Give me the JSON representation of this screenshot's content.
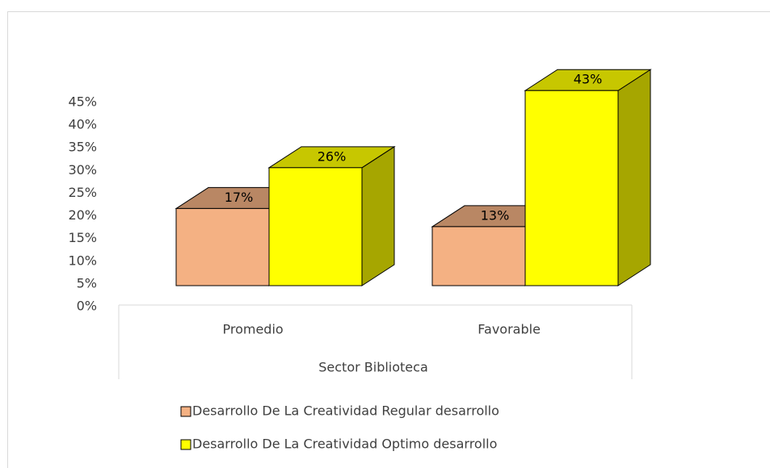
{
  "chart_data": {
    "type": "bar3d",
    "categories": [
      "Promedio",
      "Favorable"
    ],
    "group_label": "Sector Biblioteca",
    "series": [
      {
        "name": "Desarrollo De La Creatividad Regular desarrollo",
        "color": "#f4b183",
        "values": [
          17,
          13
        ],
        "value_labels": [
          "17%",
          "13%"
        ]
      },
      {
        "name": "Desarrollo De La Creatividad Optimo desarrollo",
        "color": "#ffff00",
        "values": [
          26,
          43
        ],
        "value_labels": [
          "26%",
          "43%"
        ]
      }
    ],
    "ylim": [
      0,
      45
    ],
    "yticks": [
      {
        "value": 0,
        "label": "0%"
      },
      {
        "value": 5,
        "label": "5%"
      },
      {
        "value": 10,
        "label": "10%"
      },
      {
        "value": 15,
        "label": "15%"
      },
      {
        "value": 20,
        "label": "20%"
      },
      {
        "value": 25,
        "label": "25%"
      },
      {
        "value": 30,
        "label": "30%"
      },
      {
        "value": 35,
        "label": "35%"
      },
      {
        "value": 40,
        "label": "40%"
      },
      {
        "value": 45,
        "label": "45%"
      }
    ],
    "legend": "bottom"
  }
}
